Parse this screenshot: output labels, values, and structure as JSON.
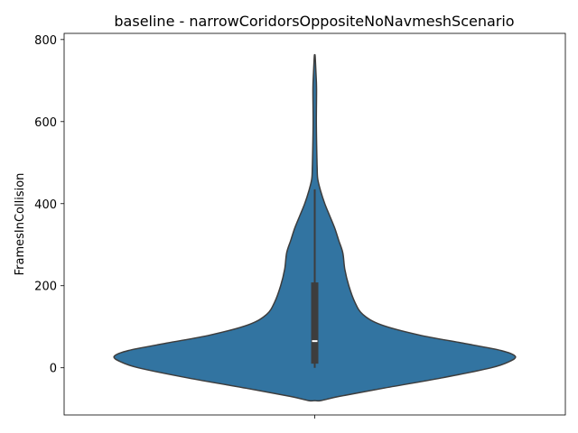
{
  "chart_data": {
    "type": "violin",
    "title": "baseline - narrowCoridorsOppositeNoNavmeshScenario",
    "xlabel": "",
    "ylabel": "FramesInCollision",
    "categories": [
      ""
    ],
    "ylim": [
      -115,
      815
    ],
    "yticks": [
      0,
      200,
      400,
      600,
      800
    ],
    "grid": false,
    "colors": {
      "violin_fill": "#3274a1",
      "violin_edge": "#3d3d3d",
      "box": "#3d3d3d",
      "median": "#ffffff"
    },
    "density_profile": [
      {
        "value": -80,
        "half_width_fraction": 0.03
      },
      {
        "value": -70,
        "half_width_fraction": 0.12
      },
      {
        "value": -50,
        "half_width_fraction": 0.34
      },
      {
        "value": -25,
        "half_width_fraction": 0.63
      },
      {
        "value": 0,
        "half_width_fraction": 0.88
      },
      {
        "value": 15,
        "half_width_fraction": 0.97
      },
      {
        "value": 28,
        "half_width_fraction": 1.0
      },
      {
        "value": 42,
        "half_width_fraction": 0.93
      },
      {
        "value": 60,
        "half_width_fraction": 0.74
      },
      {
        "value": 80,
        "half_width_fraction": 0.52
      },
      {
        "value": 105,
        "half_width_fraction": 0.33
      },
      {
        "value": 130,
        "half_width_fraction": 0.24
      },
      {
        "value": 160,
        "half_width_fraction": 0.2
      },
      {
        "value": 200,
        "half_width_fraction": 0.17
      },
      {
        "value": 240,
        "half_width_fraction": 0.15
      },
      {
        "value": 280,
        "half_width_fraction": 0.14
      },
      {
        "value": 310,
        "half_width_fraction": 0.12
      },
      {
        "value": 340,
        "half_width_fraction": 0.1
      },
      {
        "value": 370,
        "half_width_fraction": 0.075
      },
      {
        "value": 400,
        "half_width_fraction": 0.05
      },
      {
        "value": 430,
        "half_width_fraction": 0.03
      },
      {
        "value": 460,
        "half_width_fraction": 0.015
      },
      {
        "value": 490,
        "half_width_fraction": 0.012
      },
      {
        "value": 530,
        "half_width_fraction": 0.01
      },
      {
        "value": 600,
        "half_width_fraction": 0.008
      },
      {
        "value": 680,
        "half_width_fraction": 0.009
      },
      {
        "value": 720,
        "half_width_fraction": 0.006
      },
      {
        "value": 760,
        "half_width_fraction": 0.002
      }
    ],
    "box": {
      "whisker_low": 0,
      "q1": 10,
      "median": 65,
      "q3": 208,
      "whisker_high": 435
    }
  }
}
